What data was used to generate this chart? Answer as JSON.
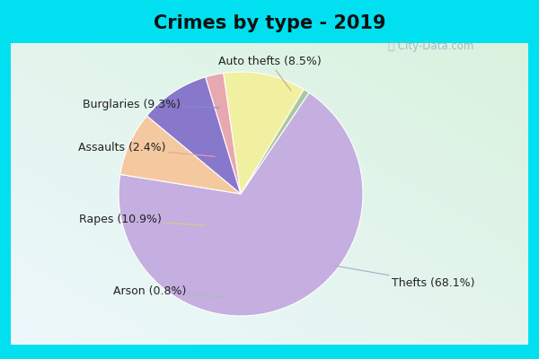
{
  "title": "Crimes by type - 2019",
  "slices": [
    {
      "label": "Thefts",
      "pct": 68.1,
      "color": "#c5aee0"
    },
    {
      "label": "Auto thefts",
      "pct": 8.5,
      "color": "#f5c9a0"
    },
    {
      "label": "Burglaries",
      "pct": 9.3,
      "color": "#8878cc"
    },
    {
      "label": "Assaults",
      "pct": 2.4,
      "color": "#e8a8b0"
    },
    {
      "label": "Rapes",
      "pct": 10.9,
      "color": "#f0f0a0"
    },
    {
      "label": "Arson",
      "pct": 0.8,
      "color": "#a8c8a0"
    }
  ],
  "bg_cyan": "#00e0f0",
  "bg_chart_tl": "#d0f0f8",
  "bg_chart_br": "#d0ecd8",
  "title_fontsize": 15,
  "label_fontsize": 9,
  "watermark": "ⓘ City-Data.com",
  "startangle": 56.0
}
